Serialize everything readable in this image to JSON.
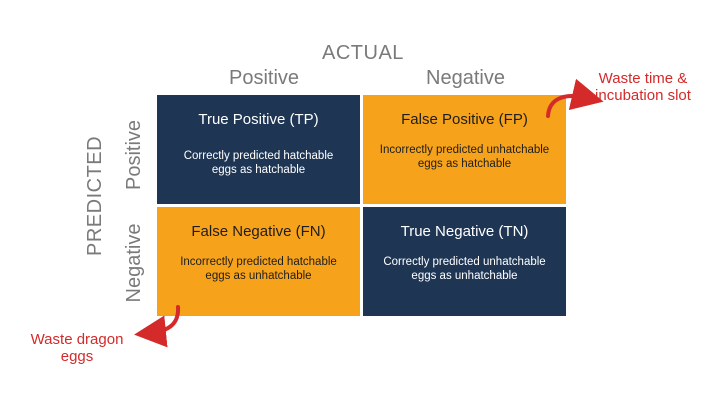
{
  "header": {
    "actual": "ACTUAL",
    "predicted": "PREDICTED"
  },
  "columns": [
    "Positive",
    "Negative"
  ],
  "rows": [
    "Positive",
    "Negative"
  ],
  "cells": {
    "tp": {
      "title": "True Positive (TP)",
      "desc": "Correctly predicted hatchable eggs as hatchable"
    },
    "fp": {
      "title": "False Positive (FP)",
      "desc": "Incorrectly predicted unhatchable eggs as hatchable"
    },
    "fn": {
      "title": "False Negative (FN)",
      "desc": "Incorrectly predicted hatchable eggs as unhatchable"
    },
    "tn": {
      "title": "True Negative (TN)",
      "desc": "Correctly predicted unhatchable eggs as unhatchable"
    }
  },
  "annotations": {
    "fp_note": "Waste time & incubation slot",
    "fn_note": "Waste dragon eggs"
  },
  "colors": {
    "dark": "#1e3553",
    "orange": "#f7a21b",
    "accent_red": "#d42a2a",
    "axis_gray": "#7a7a7a"
  }
}
